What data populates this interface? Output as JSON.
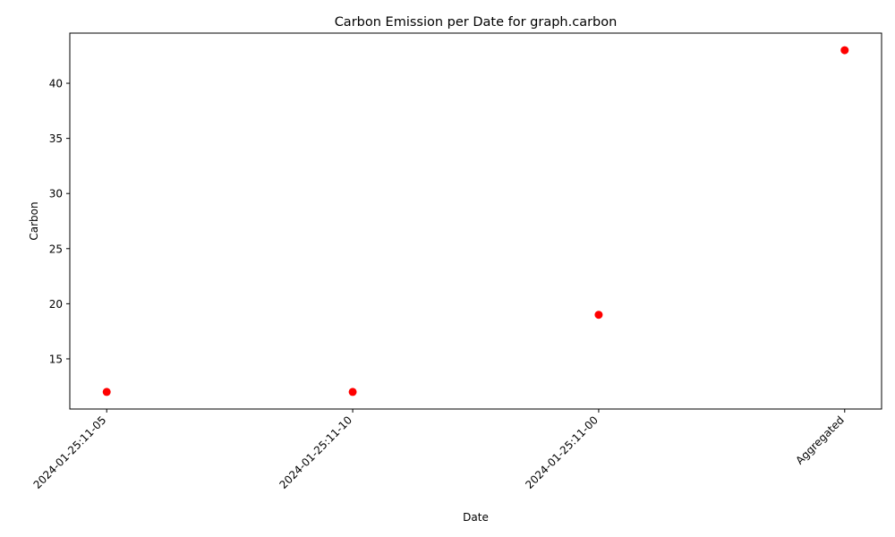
{
  "chart_data": {
    "type": "scatter",
    "title": "Carbon Emission per Date for graph.carbon",
    "xlabel": "Date",
    "ylabel": "Carbon",
    "categories": [
      "2024-01-25:11-05",
      "2024-01-25:11-10",
      "2024-01-25:11-00",
      "Aggregated"
    ],
    "series": [
      {
        "values": [
          12,
          12,
          19,
          43
        ],
        "color": "#ff0000"
      }
    ],
    "ylim": [
      10.45,
      44.55
    ],
    "yticks": [
      15,
      20,
      25,
      30,
      35,
      40
    ],
    "grid": false,
    "legend": "none"
  }
}
